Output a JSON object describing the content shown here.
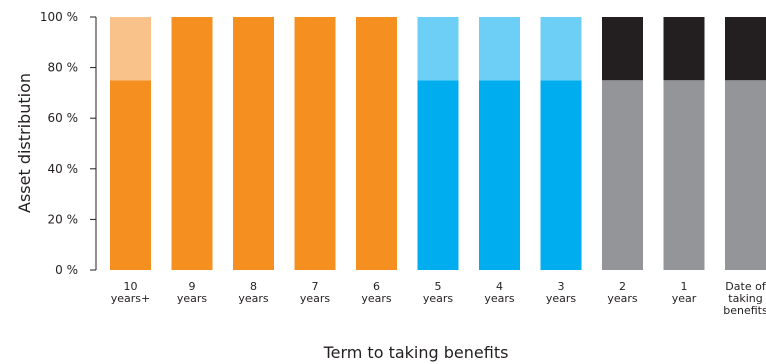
{
  "chart_data": {
    "type": "bar",
    "stacked": true,
    "xlabel": "Term to taking benefits",
    "ylabel": "Asset distribution",
    "ylim": [
      0,
      100
    ],
    "y_ticks": [
      "0 %",
      "20 %",
      "40 %",
      "60 %",
      "80 %",
      "100 %"
    ],
    "categories": [
      [
        "10",
        "years+"
      ],
      [
        "9",
        "years"
      ],
      [
        "8",
        "years"
      ],
      [
        "7",
        "years"
      ],
      [
        "6",
        "years"
      ],
      [
        "5",
        "years"
      ],
      [
        "4",
        "years"
      ],
      [
        "3",
        "years"
      ],
      [
        "2",
        "years"
      ],
      [
        "1",
        "year"
      ],
      [
        "Date of",
        "taking",
        "benefits"
      ]
    ],
    "segments": [
      [
        {
          "value": 75,
          "color": "#f58f20"
        },
        {
          "value": 25,
          "color": "#f9c28b"
        }
      ],
      [
        {
          "value": 100,
          "color": "#f58f20"
        }
      ],
      [
        {
          "value": 100,
          "color": "#f58f20"
        }
      ],
      [
        {
          "value": 100,
          "color": "#f58f20"
        }
      ],
      [
        {
          "value": 100,
          "color": "#f58f20"
        }
      ],
      [
        {
          "value": 75,
          "color": "#00aeef"
        },
        {
          "value": 25,
          "color": "#6dcff6"
        }
      ],
      [
        {
          "value": 75,
          "color": "#00aeef"
        },
        {
          "value": 25,
          "color": "#6dcff6"
        }
      ],
      [
        {
          "value": 75,
          "color": "#00aeef"
        },
        {
          "value": 25,
          "color": "#6dcff6"
        }
      ],
      [
        {
          "value": 75,
          "color": "#939598"
        },
        {
          "value": 25,
          "color": "#231f20"
        }
      ],
      [
        {
          "value": 75,
          "color": "#939598"
        },
        {
          "value": 25,
          "color": "#231f20"
        }
      ],
      [
        {
          "value": 75,
          "color": "#939598"
        },
        {
          "value": 25,
          "color": "#231f20"
        }
      ]
    ],
    "grid": false,
    "legend": "none"
  }
}
